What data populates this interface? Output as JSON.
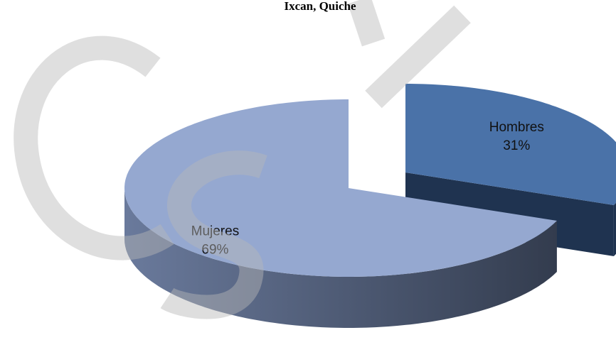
{
  "chart_data": {
    "type": "pie",
    "title": "Ixcan, Quiche",
    "categories": [
      "Hombres",
      "Mujeres"
    ],
    "values": [
      31,
      69
    ],
    "value_labels": [
      "31%",
      "69%"
    ],
    "colors": [
      "#4a72a8",
      "#95a8d0"
    ],
    "side_colors": [
      "#1f3350",
      "#4a5670"
    ]
  }
}
